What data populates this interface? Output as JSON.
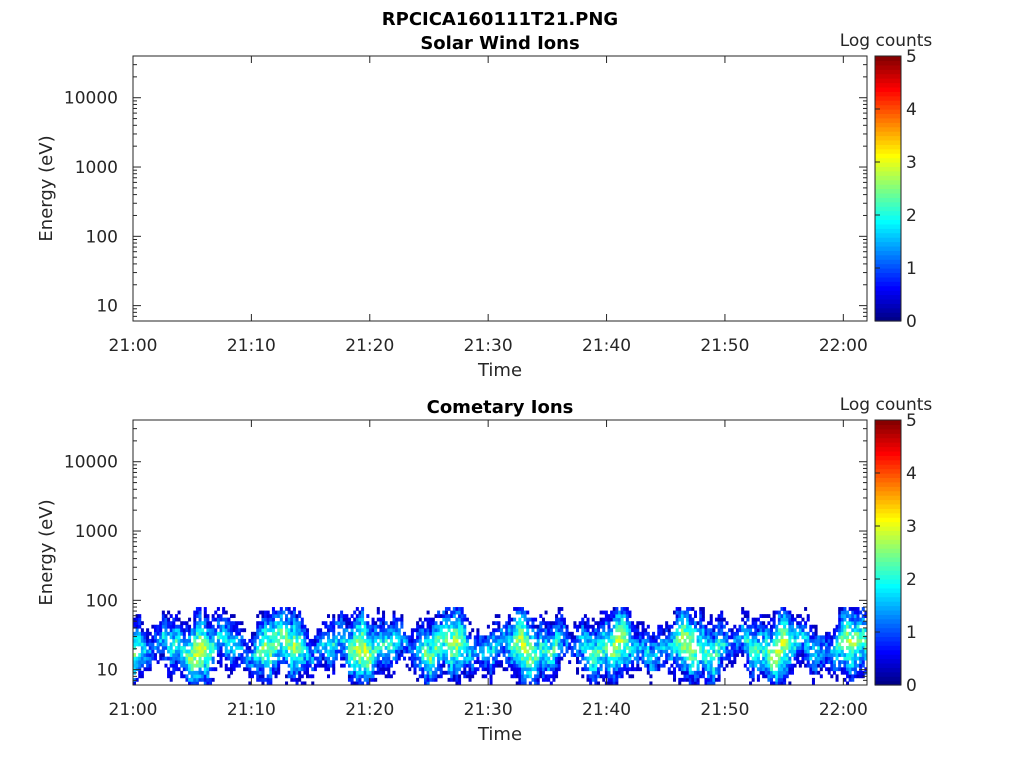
{
  "figure": {
    "filename_title": "RPCICA160111T21.PNG"
  },
  "chart_data": [
    {
      "type": "heatmap",
      "title": "Solar Wind Ions",
      "xlabel": "Time",
      "ylabel": "Energy (eV)",
      "xticks": [
        "21:00",
        "21:10",
        "21:20",
        "21:30",
        "21:40",
        "21:50",
        "22:00"
      ],
      "xlim": [
        "21:00",
        "22:02"
      ],
      "yscale": "log",
      "yticks": [
        10,
        100,
        1000,
        10000
      ],
      "ytick_labels": [
        "10",
        "100",
        "1000",
        "10000"
      ],
      "ylim": [
        6,
        40000
      ],
      "colorbar": {
        "label": "Log counts",
        "range": [
          0,
          5
        ],
        "ticks": [
          "0",
          "1",
          "2",
          "3",
          "4",
          "5"
        ],
        "colormap": "jet"
      },
      "data_summary": {
        "empty": true
      }
    },
    {
      "type": "heatmap",
      "title": "Cometary Ions",
      "xlabel": "Time",
      "ylabel": "Energy (eV)",
      "xticks": [
        "21:00",
        "21:10",
        "21:20",
        "21:30",
        "21:40",
        "21:50",
        "22:00"
      ],
      "xlim": [
        "21:00",
        "22:02"
      ],
      "yscale": "log",
      "yticks": [
        10,
        100,
        1000,
        10000
      ],
      "ytick_labels": [
        "10",
        "100",
        "1000",
        "10000"
      ],
      "ylim": [
        6,
        40000
      ],
      "colorbar": {
        "label": "Log counts",
        "range": [
          0,
          5
        ],
        "ticks": [
          "0",
          "1",
          "2",
          "3",
          "4",
          "5"
        ],
        "colormap": "jet"
      },
      "data_summary": {
        "empty": false,
        "energy_band_eV": [
          6,
          80
        ],
        "peak_energy_eV": 20,
        "peak_log_counts": 3.0
      }
    }
  ]
}
